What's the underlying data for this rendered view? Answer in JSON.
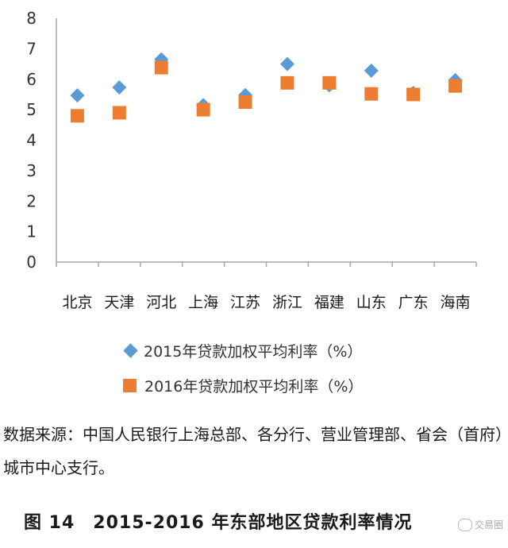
{
  "chart_data": {
    "type": "scatter",
    "categories": [
      "北京",
      "天津",
      "河北",
      "上海",
      "江苏",
      "浙江",
      "福建",
      "山东",
      "广东",
      "海南"
    ],
    "series": [
      {
        "name": "2015年贷款加权平均利率（%）",
        "marker": "diamond",
        "color": "#5b9bd5",
        "values": [
          5.47,
          5.73,
          6.65,
          5.15,
          5.48,
          6.5,
          5.8,
          6.28,
          5.55,
          5.97
        ]
      },
      {
        "name": "2016年贷款加权平均利率（%）",
        "marker": "square",
        "color": "#ed7d31",
        "values": [
          4.8,
          4.9,
          6.38,
          5.0,
          5.25,
          5.88,
          5.88,
          5.52,
          5.5,
          5.78
        ]
      }
    ],
    "yticks": [
      "0",
      "1",
      "2",
      "3",
      "4",
      "5",
      "6",
      "7",
      "8"
    ],
    "ylim": [
      0,
      8
    ],
    "grid": false,
    "legend_position": "bottom"
  },
  "source_text": "数据来源：中国人民银行上海总部、各分行、营业管理部、省会（首府）城市中心支行。",
  "caption": "图 14　2015-2016 年东部地区贷款利率情况",
  "watermark": "交易圈"
}
